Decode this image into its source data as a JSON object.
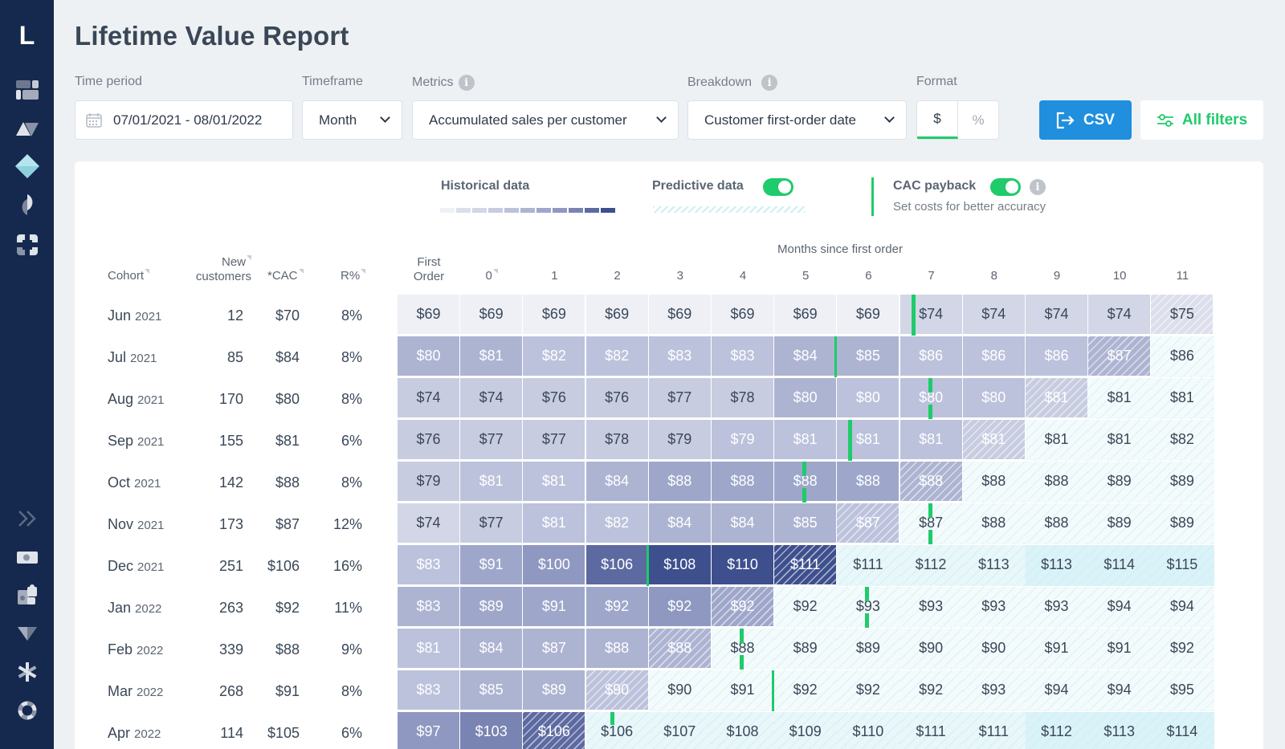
{
  "app": {
    "logo": "L",
    "title": "Lifetime Value Report"
  },
  "sidebar": {
    "top_icons": [
      "dashboard-icon",
      "triangles-icon",
      "diamond-icon",
      "pie-icon",
      "frame-icon"
    ],
    "bottom_icons": [
      "expand-icon",
      "money-icon",
      "puzzle-icon",
      "funnel-icon",
      "asterisk-icon",
      "lifebuoy-icon"
    ]
  },
  "filters": {
    "time_period": {
      "label": "Time period",
      "value": "07/01/2021 - 08/01/2022"
    },
    "timeframe": {
      "label": "Timeframe",
      "value": "Month"
    },
    "metrics": {
      "label": "Metrics",
      "value": "Accumulated sales per customer"
    },
    "breakdown": {
      "label": "Breakdown",
      "value": "Customer first-order date"
    },
    "format": {
      "label": "Format",
      "options": [
        "$",
        "%"
      ],
      "selected": "$"
    },
    "csv_label": "CSV",
    "all_filters_label": "All filters"
  },
  "legend": {
    "historical": "Historical data",
    "predictive": "Predictive data",
    "predictive_on": true,
    "cac_payback": "CAC payback",
    "cac_payback_on": true,
    "cac_hint": "Set costs for better accuracy",
    "historical_scale": [
      "#eef0f6",
      "#dcdfeb",
      "#d2d6e6",
      "#c7cce1",
      "#bcc2dc",
      "#adb4d2",
      "#9ea7ca",
      "#8f98c0",
      "#7a84b3",
      "#5d6aa1",
      "#3d4f8d"
    ],
    "accent_green": "#1fcb6a",
    "csv_blue": "#1f8fde"
  },
  "table": {
    "months_title": "Months since first order",
    "headers": {
      "cohort": "Cohort",
      "new_customers_1": "New",
      "new_customers_2": "customers",
      "cac": "*CAC",
      "r_pct": "R%",
      "first_order_1": "First",
      "first_order_2": "Order",
      "months": [
        "0",
        "1",
        "2",
        "3",
        "4",
        "5",
        "6",
        "7",
        "8",
        "9",
        "10",
        "11"
      ]
    },
    "rows": [
      {
        "month": "Jun",
        "year": "2021",
        "new": "12",
        "cac": "$70",
        "r": "8%",
        "values": [
          "$69",
          "$69",
          "$69",
          "$69",
          "$69",
          "$69",
          "$69",
          "$69",
          "$74",
          "$74",
          "$74",
          "$74",
          "$75"
        ]
      },
      {
        "month": "Jul",
        "year": "2021",
        "new": "85",
        "cac": "$84",
        "r": "8%",
        "values": [
          "$80",
          "$81",
          "$82",
          "$82",
          "$83",
          "$83",
          "$84",
          "$85",
          "$86",
          "$86",
          "$86",
          "$87",
          "$86"
        ]
      },
      {
        "month": "Aug",
        "year": "2021",
        "new": "170",
        "cac": "$80",
        "r": "8%",
        "values": [
          "$74",
          "$74",
          "$76",
          "$76",
          "$77",
          "$78",
          "$80",
          "$80",
          "$80",
          "$80",
          "$81",
          "$81",
          "$81"
        ]
      },
      {
        "month": "Sep",
        "year": "2021",
        "new": "155",
        "cac": "$81",
        "r": "6%",
        "values": [
          "$76",
          "$77",
          "$77",
          "$78",
          "$79",
          "$79",
          "$81",
          "$81",
          "$81",
          "$81",
          "$81",
          "$81",
          "$82"
        ]
      },
      {
        "month": "Oct",
        "year": "2021",
        "new": "142",
        "cac": "$88",
        "r": "8%",
        "values": [
          "$79",
          "$81",
          "$81",
          "$84",
          "$88",
          "$88",
          "$88",
          "$88",
          "$88",
          "$88",
          "$88",
          "$89",
          "$89"
        ]
      },
      {
        "month": "Nov",
        "year": "2021",
        "new": "173",
        "cac": "$87",
        "r": "12%",
        "values": [
          "$74",
          "$77",
          "$81",
          "$82",
          "$84",
          "$84",
          "$85",
          "$87",
          "$87",
          "$88",
          "$88",
          "$89",
          "$89"
        ]
      },
      {
        "month": "Dec",
        "year": "2021",
        "new": "251",
        "cac": "$106",
        "r": "16%",
        "values": [
          "$83",
          "$91",
          "$100",
          "$106",
          "$108",
          "$110",
          "$111",
          "$111",
          "$112",
          "$113",
          "$113",
          "$114",
          "$115"
        ]
      },
      {
        "month": "Jan",
        "year": "2022",
        "new": "263",
        "cac": "$92",
        "r": "11%",
        "values": [
          "$83",
          "$89",
          "$91",
          "$92",
          "$92",
          "$92",
          "$92",
          "$93",
          "$93",
          "$93",
          "$93",
          "$94",
          "$94"
        ]
      },
      {
        "month": "Feb",
        "year": "2022",
        "new": "339",
        "cac": "$88",
        "r": "9%",
        "values": [
          "$81",
          "$84",
          "$87",
          "$88",
          "$88",
          "$88",
          "$89",
          "$89",
          "$90",
          "$90",
          "$91",
          "$91",
          "$92"
        ]
      },
      {
        "month": "Mar",
        "year": "2022",
        "new": "268",
        "cac": "$91",
        "r": "8%",
        "values": [
          "$83",
          "$85",
          "$89",
          "$90",
          "$90",
          "$91",
          "$92",
          "$92",
          "$92",
          "$93",
          "$94",
          "$94",
          "$95"
        ]
      },
      {
        "month": "Apr",
        "year": "2022",
        "new": "114",
        "cac": "$105",
        "r": "6%",
        "values": [
          "$97",
          "$103",
          "$106",
          "$106",
          "$107",
          "$108",
          "$109",
          "$110",
          "$111",
          "$111",
          "$112",
          "$113",
          "$114"
        ]
      }
    ]
  },
  "cell_styles": {
    "comment": "per row: t = h (historical), x (hatched/partial), p (predicted); c = color index into historical_scale; w = white text",
    "rows": [
      {
        "t": "hhhhhhhhhhhhx",
        "c": [
          0,
          0,
          0,
          0,
          0,
          0,
          0,
          0,
          2,
          2,
          2,
          2,
          1
        ],
        "w": "0000000000000",
        "marker": [
          8,
          "left"
        ]
      },
      {
        "t": "hhhhhhhhhhhxp",
        "c": [
          5,
          5,
          4,
          4,
          4,
          4,
          5,
          5,
          4,
          4,
          4,
          5,
          0
        ],
        "w": "1111111111110",
        "marker": [
          6,
          "right"
        ]
      },
      {
        "t": "hhhhhhhhhhxpp",
        "c": [
          3,
          3,
          3,
          3,
          3,
          3,
          5,
          4,
          4,
          4,
          3,
          0,
          0
        ],
        "w": "0000001111100",
        "marker": [
          8,
          "mid"
        ]
      },
      {
        "t": "hhhhhhhhhxppp",
        "c": [
          3,
          3,
          3,
          3,
          3,
          4,
          4,
          4,
          4,
          3,
          0,
          0,
          0
        ],
        "w": "0000011111100",
        "marker": [
          7,
          "left"
        ]
      },
      {
        "t": "hhhhhhhhxpppp",
        "c": [
          3,
          4,
          4,
          5,
          6,
          6,
          6,
          6,
          5,
          0,
          0,
          0,
          0
        ],
        "w": "0111111111000",
        "marker": [
          6,
          "mid"
        ]
      },
      {
        "t": "hhhhhhhxppppp",
        "c": [
          2,
          3,
          4,
          4,
          5,
          5,
          5,
          4,
          0,
          0,
          0,
          0,
          0
        ],
        "w": "0011111100000",
        "marker": [
          8,
          "mid"
        ]
      },
      {
        "t": "hhhhhhxpppppp",
        "c": [
          4,
          6,
          7,
          9,
          10,
          10,
          10,
          0,
          0,
          0,
          0,
          0,
          0
        ],
        "w": "1111111000000",
        "marker": [
          3,
          "right"
        ]
      },
      {
        "t": "hhhhhxppppppp",
        "c": [
          5,
          6,
          6,
          6,
          7,
          6,
          0,
          0,
          0,
          0,
          0,
          0,
          0
        ],
        "w": "1111110000000",
        "marker": [
          7,
          "mid"
        ]
      },
      {
        "t": "hhhhxpppppppp",
        "c": [
          4,
          5,
          5,
          5,
          5,
          0,
          0,
          0,
          0,
          0,
          0,
          0,
          0
        ],
        "w": "1111100000000",
        "marker": [
          5,
          "mid"
        ]
      },
      {
        "t": "hhhxppppppppp",
        "c": [
          4,
          5,
          5,
          4,
          0,
          0,
          0,
          0,
          0,
          0,
          0,
          0,
          0
        ],
        "w": "1111000000000",
        "marker": [
          5,
          "right"
        ]
      },
      {
        "t": "hhxpppppppppp",
        "c": [
          7,
          8,
          9,
          0,
          0,
          0,
          0,
          0,
          0,
          0,
          0,
          0,
          0
        ],
        "w": "1110000000000",
        "marker": [
          3,
          "top"
        ]
      }
    ]
  }
}
